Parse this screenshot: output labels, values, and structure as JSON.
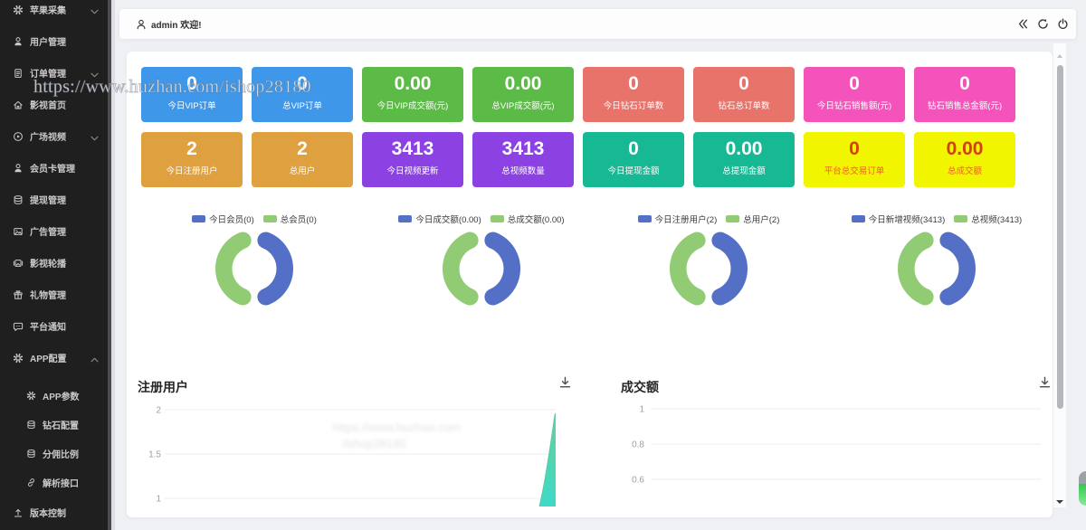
{
  "window": {
    "bg": "#eef0f4"
  },
  "watermark": {
    "text": "https://www.huzhan.com/ishop28180",
    "ghost_lines": [
      "https://www.huzhan.com",
      "/ishop28180"
    ]
  },
  "sidebar": {
    "bg": "#1f1f1f",
    "text_color": "#c9c9c9",
    "items": [
      {
        "label": "苹果采集",
        "icon": "gear",
        "chevron": "down",
        "sub": false
      },
      {
        "label": "用户管理",
        "icon": "user",
        "chevron": null,
        "sub": false
      },
      {
        "label": "订单管理",
        "icon": "order",
        "chevron": "down",
        "sub": false
      },
      {
        "label": "影视首页",
        "icon": "home",
        "chevron": null,
        "sub": false
      },
      {
        "label": "广场视频",
        "icon": "play",
        "chevron": "down",
        "sub": false
      },
      {
        "label": "会员卡管理",
        "icon": "member",
        "chevron": null,
        "sub": false
      },
      {
        "label": "提现管理",
        "icon": "withdraw",
        "chevron": null,
        "sub": false
      },
      {
        "label": "广告管理",
        "icon": "ad",
        "chevron": null,
        "sub": false
      },
      {
        "label": "影视轮播",
        "icon": "carousel",
        "chevron": null,
        "sub": false
      },
      {
        "label": "礼物管理",
        "icon": "gift",
        "chevron": null,
        "sub": false
      },
      {
        "label": "平台通知",
        "icon": "notice",
        "chevron": null,
        "sub": false
      },
      {
        "label": "APP配置",
        "icon": "config",
        "chevron": "up",
        "sub": false
      },
      {
        "label": "APP参数",
        "icon": "param",
        "chevron": null,
        "sub": true
      },
      {
        "label": "钻石配置",
        "icon": "diamond",
        "chevron": null,
        "sub": true
      },
      {
        "label": "分佣比例",
        "icon": "commission",
        "chevron": null,
        "sub": true
      },
      {
        "label": "解析接口",
        "icon": "parse",
        "chevron": null,
        "sub": true
      },
      {
        "label": "版本控制",
        "icon": "version",
        "chevron": null,
        "sub": false
      }
    ]
  },
  "header": {
    "welcome": "admin 欢迎!",
    "icons": [
      "collapse",
      "refresh",
      "power"
    ]
  },
  "stat_cards": [
    {
      "value": "0",
      "label": "今日VIP订单",
      "bg": "#3e97e9",
      "value_color": "#ffffff",
      "label_color": "#ffffff"
    },
    {
      "value": "0",
      "label": "总VIP订单",
      "bg": "#3e97e9",
      "value_color": "#ffffff",
      "label_color": "#ffffff"
    },
    {
      "value": "0.00",
      "label": "今日VIP成交额(元)",
      "bg": "#5cba47",
      "value_color": "#ffffff",
      "label_color": "#ffffff"
    },
    {
      "value": "0.00",
      "label": "总VIP成交额(元)",
      "bg": "#5cba47",
      "value_color": "#ffffff",
      "label_color": "#ffffff"
    },
    {
      "value": "0",
      "label": "今日钻石订单数",
      "bg": "#e8736b",
      "value_color": "#ffffff",
      "label_color": "#ffffff"
    },
    {
      "value": "0",
      "label": "钻石总订单数",
      "bg": "#e8736b",
      "value_color": "#ffffff",
      "label_color": "#ffffff"
    },
    {
      "value": "0",
      "label": "今日钻石销售额(元)",
      "bg": "#f353bb",
      "value_color": "#ffffff",
      "label_color": "#ffffff"
    },
    {
      "value": "0",
      "label": "钻石销售总金额(元)",
      "bg": "#f353bb",
      "value_color": "#ffffff",
      "label_color": "#ffffff"
    },
    {
      "value": "2",
      "label": "今日注册用户",
      "bg": "#dfa140",
      "value_color": "#ffffff",
      "label_color": "#ffffff"
    },
    {
      "value": "2",
      "label": "总用户",
      "bg": "#dfa140",
      "value_color": "#ffffff",
      "label_color": "#ffffff"
    },
    {
      "value": "3413",
      "label": "今日视频更新",
      "bg": "#8c42e3",
      "value_color": "#ffffff",
      "label_color": "#ffffff"
    },
    {
      "value": "3413",
      "label": "总视频数量",
      "bg": "#8c42e3",
      "value_color": "#ffffff",
      "label_color": "#ffffff"
    },
    {
      "value": "0",
      "label": "今日提现金额",
      "bg": "#17b894",
      "value_color": "#ffffff",
      "label_color": "#ffffff"
    },
    {
      "value": "0.00",
      "label": "总提现金额",
      "bg": "#17b894",
      "value_color": "#ffffff",
      "label_color": "#ffffff"
    },
    {
      "value": "0",
      "label": "平台总交易订单",
      "bg": "#f2f500",
      "value_color": "#d2400d",
      "label_color": "#ef6223"
    },
    {
      "value": "0.00",
      "label": "总成交额",
      "bg": "#f2f500",
      "value_color": "#d2400d",
      "label_color": "#ef6223"
    }
  ],
  "chart_data": [
    {
      "type": "pie",
      "legend": [
        "今日会员(0)",
        "总会员(0)"
      ],
      "series": [
        {
          "name": "今日会员",
          "value": 0
        },
        {
          "name": "总会员",
          "value": 0
        }
      ],
      "slices_pct": [
        50,
        50
      ],
      "colors": [
        "#5470c6",
        "#91cc75"
      ]
    },
    {
      "type": "pie",
      "legend": [
        "今日成交额(0.00)",
        "总成交额(0.00)"
      ],
      "series": [
        {
          "name": "今日成交额",
          "value": 0.0
        },
        {
          "name": "总成交额",
          "value": 0.0
        }
      ],
      "slices_pct": [
        50,
        50
      ],
      "colors": [
        "#5470c6",
        "#91cc75"
      ]
    },
    {
      "type": "pie",
      "legend": [
        "今日注册用户(2)",
        "总用户(2)"
      ],
      "series": [
        {
          "name": "今日注册用户",
          "value": 2
        },
        {
          "name": "总用户",
          "value": 2
        }
      ],
      "slices_pct": [
        50,
        50
      ],
      "colors": [
        "#5470c6",
        "#91cc75"
      ]
    },
    {
      "type": "pie",
      "legend": [
        "今日新增视频(3413)",
        "总视频(3413)"
      ],
      "series": [
        {
          "name": "今日新增视频",
          "value": 3413
        },
        {
          "name": "总视频",
          "value": 3413
        }
      ],
      "slices_pct": [
        50,
        50
      ],
      "colors": [
        "#5470c6",
        "#91cc75"
      ]
    },
    {
      "type": "area",
      "title": "注册用户",
      "visible_yticks": [
        "2",
        "1.5",
        "1"
      ],
      "series": [
        {
          "name": "注册用户",
          "note": "all earlier dates 0, last point spikes",
          "last_value": 2
        }
      ],
      "spike_colors": [
        "#66cf98",
        "#3ed9c8"
      ],
      "grid": true
    },
    {
      "type": "area",
      "title": "成交额",
      "visible_yticks": [
        "1",
        "0.8",
        "0.6"
      ],
      "series": [
        {
          "name": "成交额",
          "note": "no visible data, flat 0",
          "last_value": 0
        }
      ],
      "grid": true
    }
  ]
}
